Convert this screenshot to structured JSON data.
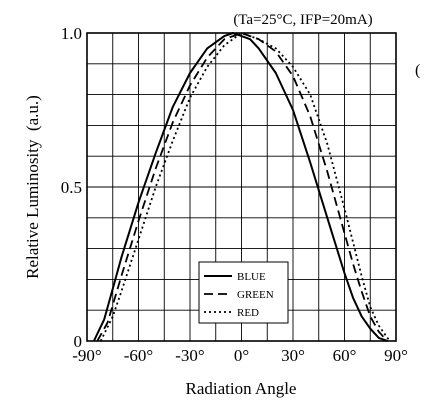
{
  "chart_data": {
    "type": "line",
    "title": "(Ta=25°C, IFP=20mA)",
    "edge_fragment": "(",
    "xlabel": "Radiation Angle",
    "ylabel": "Relative Luminosity  (a.u.)",
    "xlim": [
      -90,
      90
    ],
    "ylim": [
      0,
      1.0
    ],
    "x_ticks": [
      {
        "value": -90,
        "label": "-90°"
      },
      {
        "value": -60,
        "label": "-60°"
      },
      {
        "value": -30,
        "label": "-30°"
      },
      {
        "value": 0,
        "label": "0°"
      },
      {
        "value": 30,
        "label": "30°"
      },
      {
        "value": 60,
        "label": "60°"
      },
      {
        "value": 90,
        "label": "90°"
      }
    ],
    "y_ticks": [
      {
        "value": 0,
        "label": "0"
      },
      {
        "value": 0.5,
        "label": "0.5"
      },
      {
        "value": 1.0,
        "label": "1.0"
      }
    ],
    "grid": true,
    "legend_position": "bottom-center",
    "series": [
      {
        "name": "BLUE",
        "style": "solid",
        "x": [
          -86,
          -80,
          -75,
          -70,
          -60,
          -50,
          -40,
          -30,
          -20,
          -10,
          -5,
          0,
          5,
          10,
          20,
          30,
          40,
          50,
          60,
          65,
          70,
          75,
          80,
          85
        ],
        "y": [
          0,
          0.07,
          0.17,
          0.27,
          0.45,
          0.61,
          0.76,
          0.87,
          0.95,
          0.99,
          1.0,
          0.99,
          0.98,
          0.95,
          0.87,
          0.75,
          0.58,
          0.4,
          0.22,
          0.14,
          0.08,
          0.04,
          0.01,
          0
        ]
      },
      {
        "name": "GREEN",
        "style": "dashed",
        "x": [
          -84,
          -78,
          -70,
          -60,
          -50,
          -40,
          -30,
          -20,
          -10,
          -5,
          0,
          5,
          10,
          20,
          30,
          40,
          50,
          60,
          65,
          70,
          75,
          80,
          85
        ],
        "y": [
          0,
          0.06,
          0.21,
          0.39,
          0.56,
          0.71,
          0.83,
          0.92,
          0.98,
          0.99,
          1.0,
          0.99,
          0.98,
          0.94,
          0.86,
          0.73,
          0.55,
          0.35,
          0.25,
          0.16,
          0.08,
          0.03,
          0
        ]
      },
      {
        "name": "RED",
        "style": "dotted",
        "x": [
          -82,
          -75,
          -70,
          -60,
          -50,
          -40,
          -30,
          -20,
          -10,
          0,
          5,
          10,
          20,
          30,
          40,
          50,
          60,
          70,
          75,
          80,
          85,
          87
        ],
        "y": [
          0,
          0.08,
          0.16,
          0.33,
          0.5,
          0.65,
          0.79,
          0.89,
          0.96,
          1.0,
          0.99,
          0.98,
          0.95,
          0.89,
          0.8,
          0.64,
          0.43,
          0.21,
          0.11,
          0.05,
          0.01,
          0
        ]
      }
    ]
  }
}
